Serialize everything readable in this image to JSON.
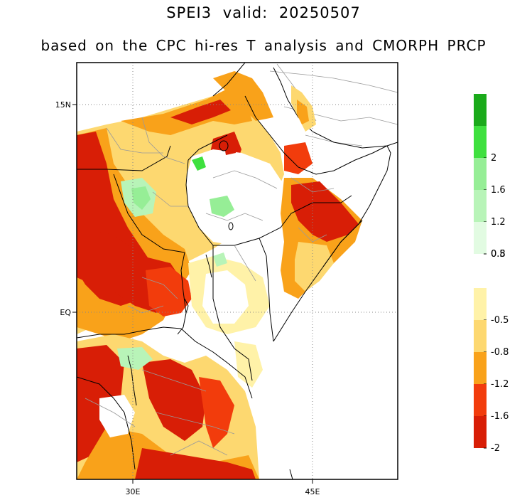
{
  "title": "SPEI3  valid: 20250507",
  "subtitle": "based on the CPC hi-res T analysis and CMORPH PRCP",
  "map": {
    "lat_ticks": [
      "15N",
      "EQ"
    ],
    "lon_ticks": [
      "30E",
      "45E"
    ]
  },
  "legend": {
    "wet": [
      {
        "color": "#1aaa1a",
        "label": ""
      },
      {
        "color": "#3ee03e",
        "label": "2"
      },
      {
        "color": "#96ee96",
        "label": "1.6"
      },
      {
        "color": "#b8f4b8",
        "label": "1.2"
      },
      {
        "color": "#e2fbe2",
        "label": "0.8"
      },
      {
        "color": "",
        "label": "0.5"
      }
    ],
    "dry": [
      {
        "color": "#fff2a8",
        "label": "-0.5"
      },
      {
        "color": "#fdd870",
        "label": "-0.8"
      },
      {
        "color": "#f9a21a",
        "label": "-1.2"
      },
      {
        "color": "#f23c0c",
        "label": "-1.6"
      },
      {
        "color": "#d81e06",
        "label": "-2"
      }
    ]
  },
  "colors": {
    "very_dry": "#d81e06",
    "severe_dry": "#f23c0c",
    "moderate_dry": "#f9a21a",
    "mild_dry": "#fdd870",
    "abnormal_dry": "#fff2a8",
    "light_wet": "#b8f4b8",
    "moderate_wet": "#96ee96",
    "very_wet": "#1aaa1a"
  }
}
